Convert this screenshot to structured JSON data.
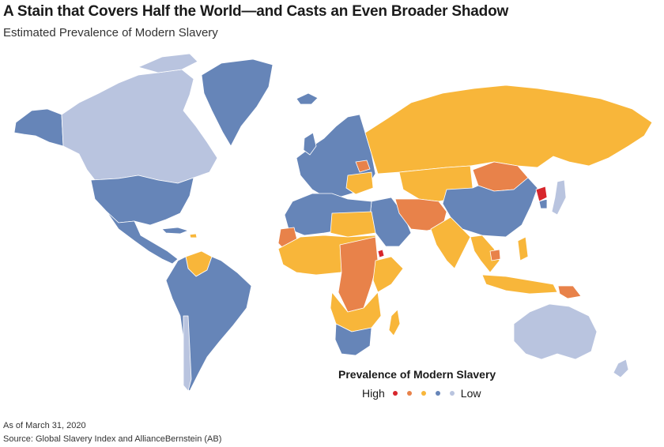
{
  "header": {
    "title": "A Stain that Covers Half the World—and Casts an Even Broader Shadow",
    "subtitle": "Estimated Prevalence of Modern Slavery"
  },
  "legend": {
    "title": "Prevalence of Modern Slavery",
    "high_label": "High",
    "low_label": "Low",
    "levels": [
      {
        "level": 5,
        "color": "#d7262c"
      },
      {
        "level": 4,
        "color": "#e8824a"
      },
      {
        "level": 3,
        "color": "#f8b63a"
      },
      {
        "level": 2,
        "color": "#6685b8"
      },
      {
        "level": 1,
        "color": "#b9c4df"
      }
    ]
  },
  "footer": {
    "as_of": "As of March 31, 2020",
    "source": "Source: Global Slavery Index and AllianceBernstein (AB)"
  }
}
